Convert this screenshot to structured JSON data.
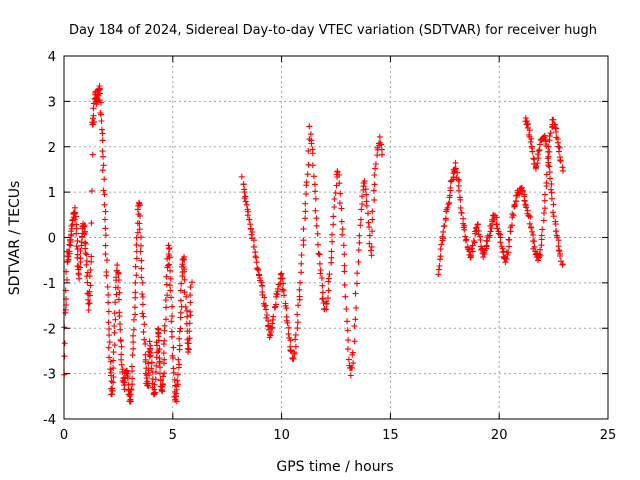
{
  "chart_data": {
    "type": "scatter",
    "title": "Day 184 of 2024, Sidereal Day-to-day VTEC variation (SDTVAR) for receiver hugh",
    "xlabel": "GPS time / hours",
    "ylabel": "SDTVAR / TECUs",
    "xlim": [
      0,
      25
    ],
    "ylim": [
      -4,
      4
    ],
    "xticks": [
      "0",
      "5",
      "10",
      "15",
      "20",
      "25"
    ],
    "yticks": [
      "-4",
      "-3",
      "-2",
      "-1",
      "0",
      "1",
      "2",
      "3",
      "4"
    ],
    "xtick_values": [
      0,
      5,
      10,
      15,
      20,
      25
    ],
    "ytick_values": [
      -4,
      -3,
      -2,
      -1,
      0,
      1,
      2,
      3,
      4
    ],
    "grid": true,
    "marker": "plus",
    "color": "#ff0000",
    "series": [
      {
        "name": "segment-1",
        "x": [
          0.0,
          0.05,
          0.1,
          0.15,
          0.2,
          0.25,
          0.3,
          0.35,
          0.4,
          0.45,
          0.5,
          0.55,
          0.6,
          0.65,
          0.7,
          0.75,
          0.8,
          0.85,
          0.9,
          0.95,
          1.0,
          1.05,
          1.1,
          1.15,
          1.2,
          1.25,
          1.3,
          1.35,
          1.4,
          1.45,
          1.5,
          1.55,
          1.6,
          1.65,
          1.7,
          1.75,
          1.8,
          1.85,
          1.9,
          1.95,
          2.0,
          2.05,
          2.1,
          2.15,
          2.2,
          2.25,
          2.3,
          2.35,
          2.4,
          2.45,
          2.5,
          2.55,
          2.6,
          2.65,
          2.7,
          2.75,
          2.8,
          2.85,
          2.9,
          2.95,
          3.0,
          3.05,
          3.1,
          3.15,
          3.2,
          3.25,
          3.3,
          3.35,
          3.4,
          3.45,
          3.5,
          3.55,
          3.6,
          3.65,
          3.7,
          3.75,
          3.8,
          3.85,
          3.9,
          3.95,
          4.0,
          4.05,
          4.1,
          4.15,
          4.2,
          4.25,
          4.3,
          4.35,
          4.4,
          4.45,
          4.5,
          4.55,
          4.6,
          4.65,
          4.7,
          4.75,
          4.8,
          4.85,
          4.9,
          4.95,
          5.0,
          5.05,
          5.1,
          5.15,
          5.2,
          5.25,
          5.3,
          5.35,
          5.4,
          5.45,
          5.5,
          5.55,
          5.6,
          5.65,
          5.7,
          5.75,
          5.8,
          5.85
        ],
        "y": [
          -3.0,
          -1.7,
          -1.2,
          -0.3,
          -0.5,
          -0.2,
          0.0,
          0.2,
          0.4,
          0.5,
          0.6,
          0.3,
          -0.2,
          -0.6,
          -0.9,
          -0.5,
          -0.1,
          0.2,
          0.3,
          0.1,
          -0.2,
          -0.6,
          -1.2,
          -1.6,
          -1.0,
          -0.4,
          2.5,
          2.6,
          3.0,
          3.2,
          2.9,
          3.1,
          3.3,
          3.3,
          2.8,
          2.3,
          1.6,
          0.9,
          0.2,
          -0.5,
          -1.3,
          -2.0,
          -2.6,
          -3.1,
          -3.5,
          -3.2,
          -2.5,
          -1.8,
          -1.1,
          -0.6,
          -0.9,
          -1.6,
          -2.2,
          -2.7,
          -3.1,
          -3.3,
          -3.2,
          -2.9,
          -3.0,
          -3.3,
          -3.5,
          -3.6,
          -3.3,
          -2.8,
          -2.2,
          -1.5,
          -0.8,
          -0.2,
          0.5,
          0.8,
          0.2,
          -0.5,
          -1.2,
          -1.8,
          -2.4,
          -2.9,
          -3.2,
          -3.3,
          -2.8,
          -2.3,
          -2.6,
          -3.0,
          -3.4,
          -3.5,
          -3.1,
          -2.5,
          -2.0,
          -2.3,
          -2.7,
          -3.1,
          -3.4,
          -3.2,
          -2.7,
          -2.1,
          -1.4,
          -0.7,
          -0.2,
          -0.4,
          -1.0,
          -1.7,
          -2.4,
          -3.0,
          -3.5,
          -3.6,
          -3.3,
          -2.9,
          -2.4,
          -1.8,
          -1.2,
          -0.6,
          -0.4,
          -0.8,
          -1.5,
          -2.1,
          -2.5,
          -2.2,
          -1.6,
          -1.0
        ]
      },
      {
        "name": "segment-2",
        "x": [
          8.2,
          8.3,
          8.4,
          8.5,
          8.6,
          8.7,
          8.8,
          8.9,
          9.0,
          9.1,
          9.2,
          9.3,
          9.4,
          9.5,
          9.6,
          9.7,
          9.8,
          9.9,
          10.0,
          10.1,
          10.2,
          10.3,
          10.4,
          10.5,
          10.6,
          10.7,
          10.8,
          10.9,
          11.0,
          11.1,
          11.2,
          11.3,
          11.4,
          11.5,
          11.6,
          11.7,
          11.8,
          11.9,
          12.0,
          12.1,
          12.2,
          12.3,
          12.4,
          12.5,
          12.6,
          12.7,
          12.8,
          12.9,
          13.0,
          13.1,
          13.2,
          13.3,
          13.4,
          13.5,
          13.6,
          13.7,
          13.8,
          13.9,
          14.0,
          14.1,
          14.2,
          14.3,
          14.4,
          14.5,
          14.6
        ],
        "y": [
          1.3,
          1.0,
          0.7,
          0.4,
          0.2,
          -0.1,
          -0.4,
          -0.7,
          -0.9,
          -1.1,
          -1.4,
          -1.7,
          -2.0,
          -2.2,
          -1.9,
          -1.5,
          -1.2,
          -1.0,
          -0.8,
          -1.2,
          -1.6,
          -2.0,
          -2.4,
          -2.7,
          -2.5,
          -2.0,
          -1.4,
          -0.8,
          0.0,
          0.8,
          1.4,
          2.4,
          2.0,
          1.2,
          0.4,
          -0.3,
          -0.8,
          -1.3,
          -1.6,
          -1.4,
          -0.9,
          -0.3,
          0.5,
          1.2,
          1.5,
          0.8,
          0.0,
          -0.8,
          -1.8,
          -2.7,
          -3.0,
          -2.5,
          -1.5,
          -0.5,
          0.3,
          0.9,
          1.3,
          0.8,
          0.2,
          -0.4,
          0.6,
          1.4,
          1.9,
          2.2,
          1.8
        ]
      },
      {
        "name": "segment-3",
        "x": [
          17.2,
          17.3,
          17.4,
          17.5,
          17.6,
          17.7,
          17.8,
          17.9,
          18.0,
          18.1,
          18.2,
          18.3,
          18.4,
          18.5,
          18.6,
          18.7,
          18.8,
          18.9,
          19.0,
          19.1,
          19.2,
          19.3,
          19.4,
          19.5,
          19.6,
          19.7,
          19.8,
          19.9,
          20.0,
          20.1,
          20.2,
          20.3,
          20.4,
          20.5,
          20.6,
          20.7,
          20.8,
          20.9,
          21.0,
          21.1,
          21.2,
          21.3,
          21.4,
          21.5,
          21.6,
          21.7,
          21.8,
          21.9,
          22.0,
          22.1,
          22.2,
          22.3,
          22.4,
          22.5,
          22.6,
          22.7,
          22.8,
          22.9
        ],
        "y": [
          -0.8,
          -0.4,
          0.0,
          0.3,
          0.6,
          0.9,
          1.2,
          1.4,
          1.6,
          1.3,
          0.9,
          0.5,
          0.2,
          -0.1,
          -0.3,
          -0.4,
          -0.2,
          0.1,
          0.3,
          0.0,
          -0.3,
          -0.4,
          -0.2,
          0.0,
          0.2,
          0.4,
          0.5,
          0.3,
          0.1,
          -0.2,
          -0.4,
          -0.5,
          -0.3,
          0.1,
          0.4,
          0.7,
          0.9,
          1.0,
          1.1,
          1.0,
          0.8,
          0.6,
          0.4,
          0.1,
          -0.2,
          -0.4,
          -0.5,
          -0.3,
          0.2,
          0.8,
          1.4,
          2.0,
          2.4,
          2.6,
          2.4,
          2.1,
          1.8,
          1.5
        ]
      },
      {
        "name": "segment-4",
        "x": [
          21.2,
          21.3,
          21.4,
          21.5,
          21.6,
          21.7,
          21.8,
          21.9,
          22.0,
          22.1,
          22.2,
          22.3,
          22.4,
          22.5,
          22.6,
          22.7,
          22.8,
          22.9
        ],
        "y": [
          2.6,
          2.5,
          2.3,
          2.0,
          1.7,
          1.5,
          1.8,
          2.1,
          2.2,
          2.2,
          2.0,
          1.6,
          1.1,
          0.6,
          0.2,
          -0.1,
          -0.4,
          -0.6
        ]
      }
    ]
  }
}
